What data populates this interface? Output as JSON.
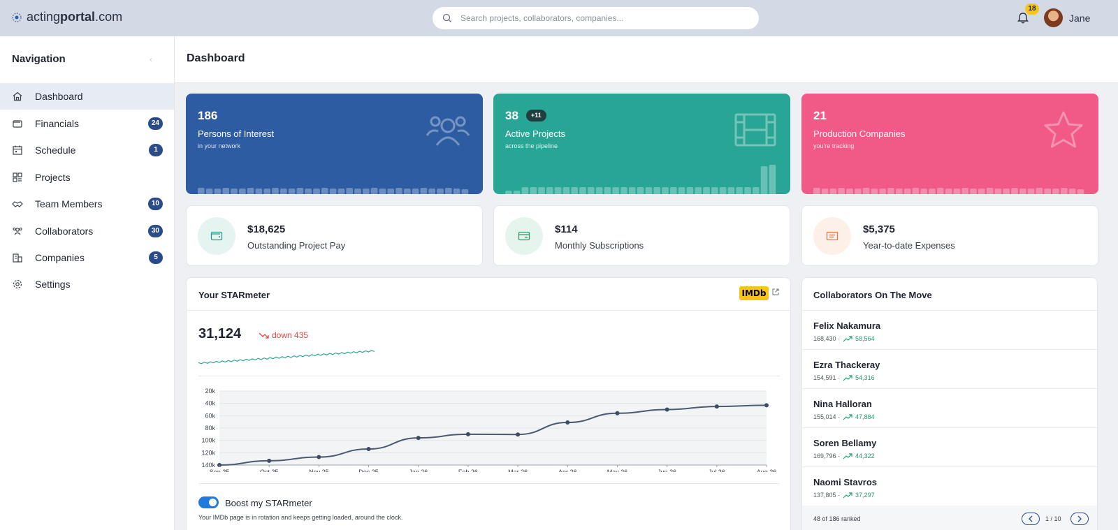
{
  "app": {
    "logo_light_a": "acting",
    "logo_bold": "portal",
    "logo_light_b": ".com",
    "search_placeholder": "Search projects, collaborators, companies...",
    "notifications_count": "18",
    "user_name": "Jane"
  },
  "sidebar": {
    "title": "Navigation",
    "items": [
      {
        "label": "Dashboard",
        "icon": "home-icon",
        "badge": "",
        "active": true
      },
      {
        "label": "Financials",
        "icon": "wallet-icon",
        "badge": "24"
      },
      {
        "label": "Schedule",
        "icon": "calendar-icon",
        "badge": "1"
      },
      {
        "label": "Projects",
        "icon": "grid-icon",
        "badge": ""
      },
      {
        "label": "Team Members",
        "icon": "handshake-icon",
        "badge": "10"
      },
      {
        "label": "Collaborators",
        "icon": "users-icon",
        "badge": "30"
      },
      {
        "label": "Companies",
        "icon": "building-icon",
        "badge": "5"
      },
      {
        "label": "Settings",
        "icon": "gear-icon",
        "badge": ""
      }
    ]
  },
  "page": {
    "title": "Dashboard"
  },
  "stats": [
    {
      "value": "186",
      "title": "Persons of Interest",
      "sub": "in your network",
      "icon": "users-icon",
      "color": "#2d5ca3"
    },
    {
      "value": "38",
      "pill": "+11",
      "title": "Active Projects",
      "sub": "across the pipeline",
      "icon": "film-icon",
      "color": "#29a596"
    },
    {
      "value": "21",
      "title": "Production Companies",
      "sub": "you're tracking",
      "icon": "star-icon",
      "color": "#f15a87"
    }
  ],
  "money": [
    {
      "amount": "$18,625",
      "label": "Outstanding Project Pay",
      "icon": "wallet-icon",
      "color": "#2a9d8f"
    },
    {
      "amount": "$114",
      "label": "Monthly Subscriptions",
      "icon": "card-icon",
      "color": "#2a9d6a"
    },
    {
      "amount": "$5,375",
      "label": "Year-to-date Expenses",
      "icon": "receipt-icon",
      "color": "#e07a4a"
    }
  ],
  "starmeter": {
    "title": "Your STARmeter",
    "badge": "IMDb",
    "score": "31,124",
    "trend": "down 435",
    "boost_label": "Boost my STARmeter",
    "boost_note": "Your IMDb page is in rotation and keeps getting loaded, around the clock.",
    "boost_on": true
  },
  "chart_data": {
    "type": "line",
    "title": "",
    "x": [
      "Sep 25",
      "Oct 25",
      "Nov 25",
      "Dec 25",
      "Jan 26",
      "Feb 26",
      "Mar 26",
      "Apr 26",
      "May 26",
      "Jun 26",
      "Jul 26",
      "Aug 26"
    ],
    "series": [
      {
        "values": [
          140000,
          133000,
          127000,
          114000,
          96000,
          90000,
          90500,
          71000,
          56000,
          50000,
          45000,
          43000
        ]
      }
    ],
    "y_ticks": [
      "20k",
      "40k",
      "60k",
      "80k",
      "100k",
      "120k",
      "140k"
    ],
    "ylim": [
      20000,
      140000
    ],
    "y_inverted": true,
    "grid": true
  },
  "collaborators": {
    "title": "Collaborators On The Move",
    "items": [
      {
        "name": "Felix Nakamura",
        "rank": "168,430",
        "gain": "58,564"
      },
      {
        "name": "Ezra Thackeray",
        "rank": "154,591",
        "gain": "54,316"
      },
      {
        "name": "Nina Halloran",
        "rank": "155,014",
        "gain": "47,884"
      },
      {
        "name": "Soren Bellamy",
        "rank": "169,796",
        "gain": "44,322"
      },
      {
        "name": "Naomi Stavros",
        "rank": "137,805",
        "gain": "37,297"
      }
    ],
    "footer_count": "48 of 186 ranked",
    "page": "1 / 10"
  }
}
